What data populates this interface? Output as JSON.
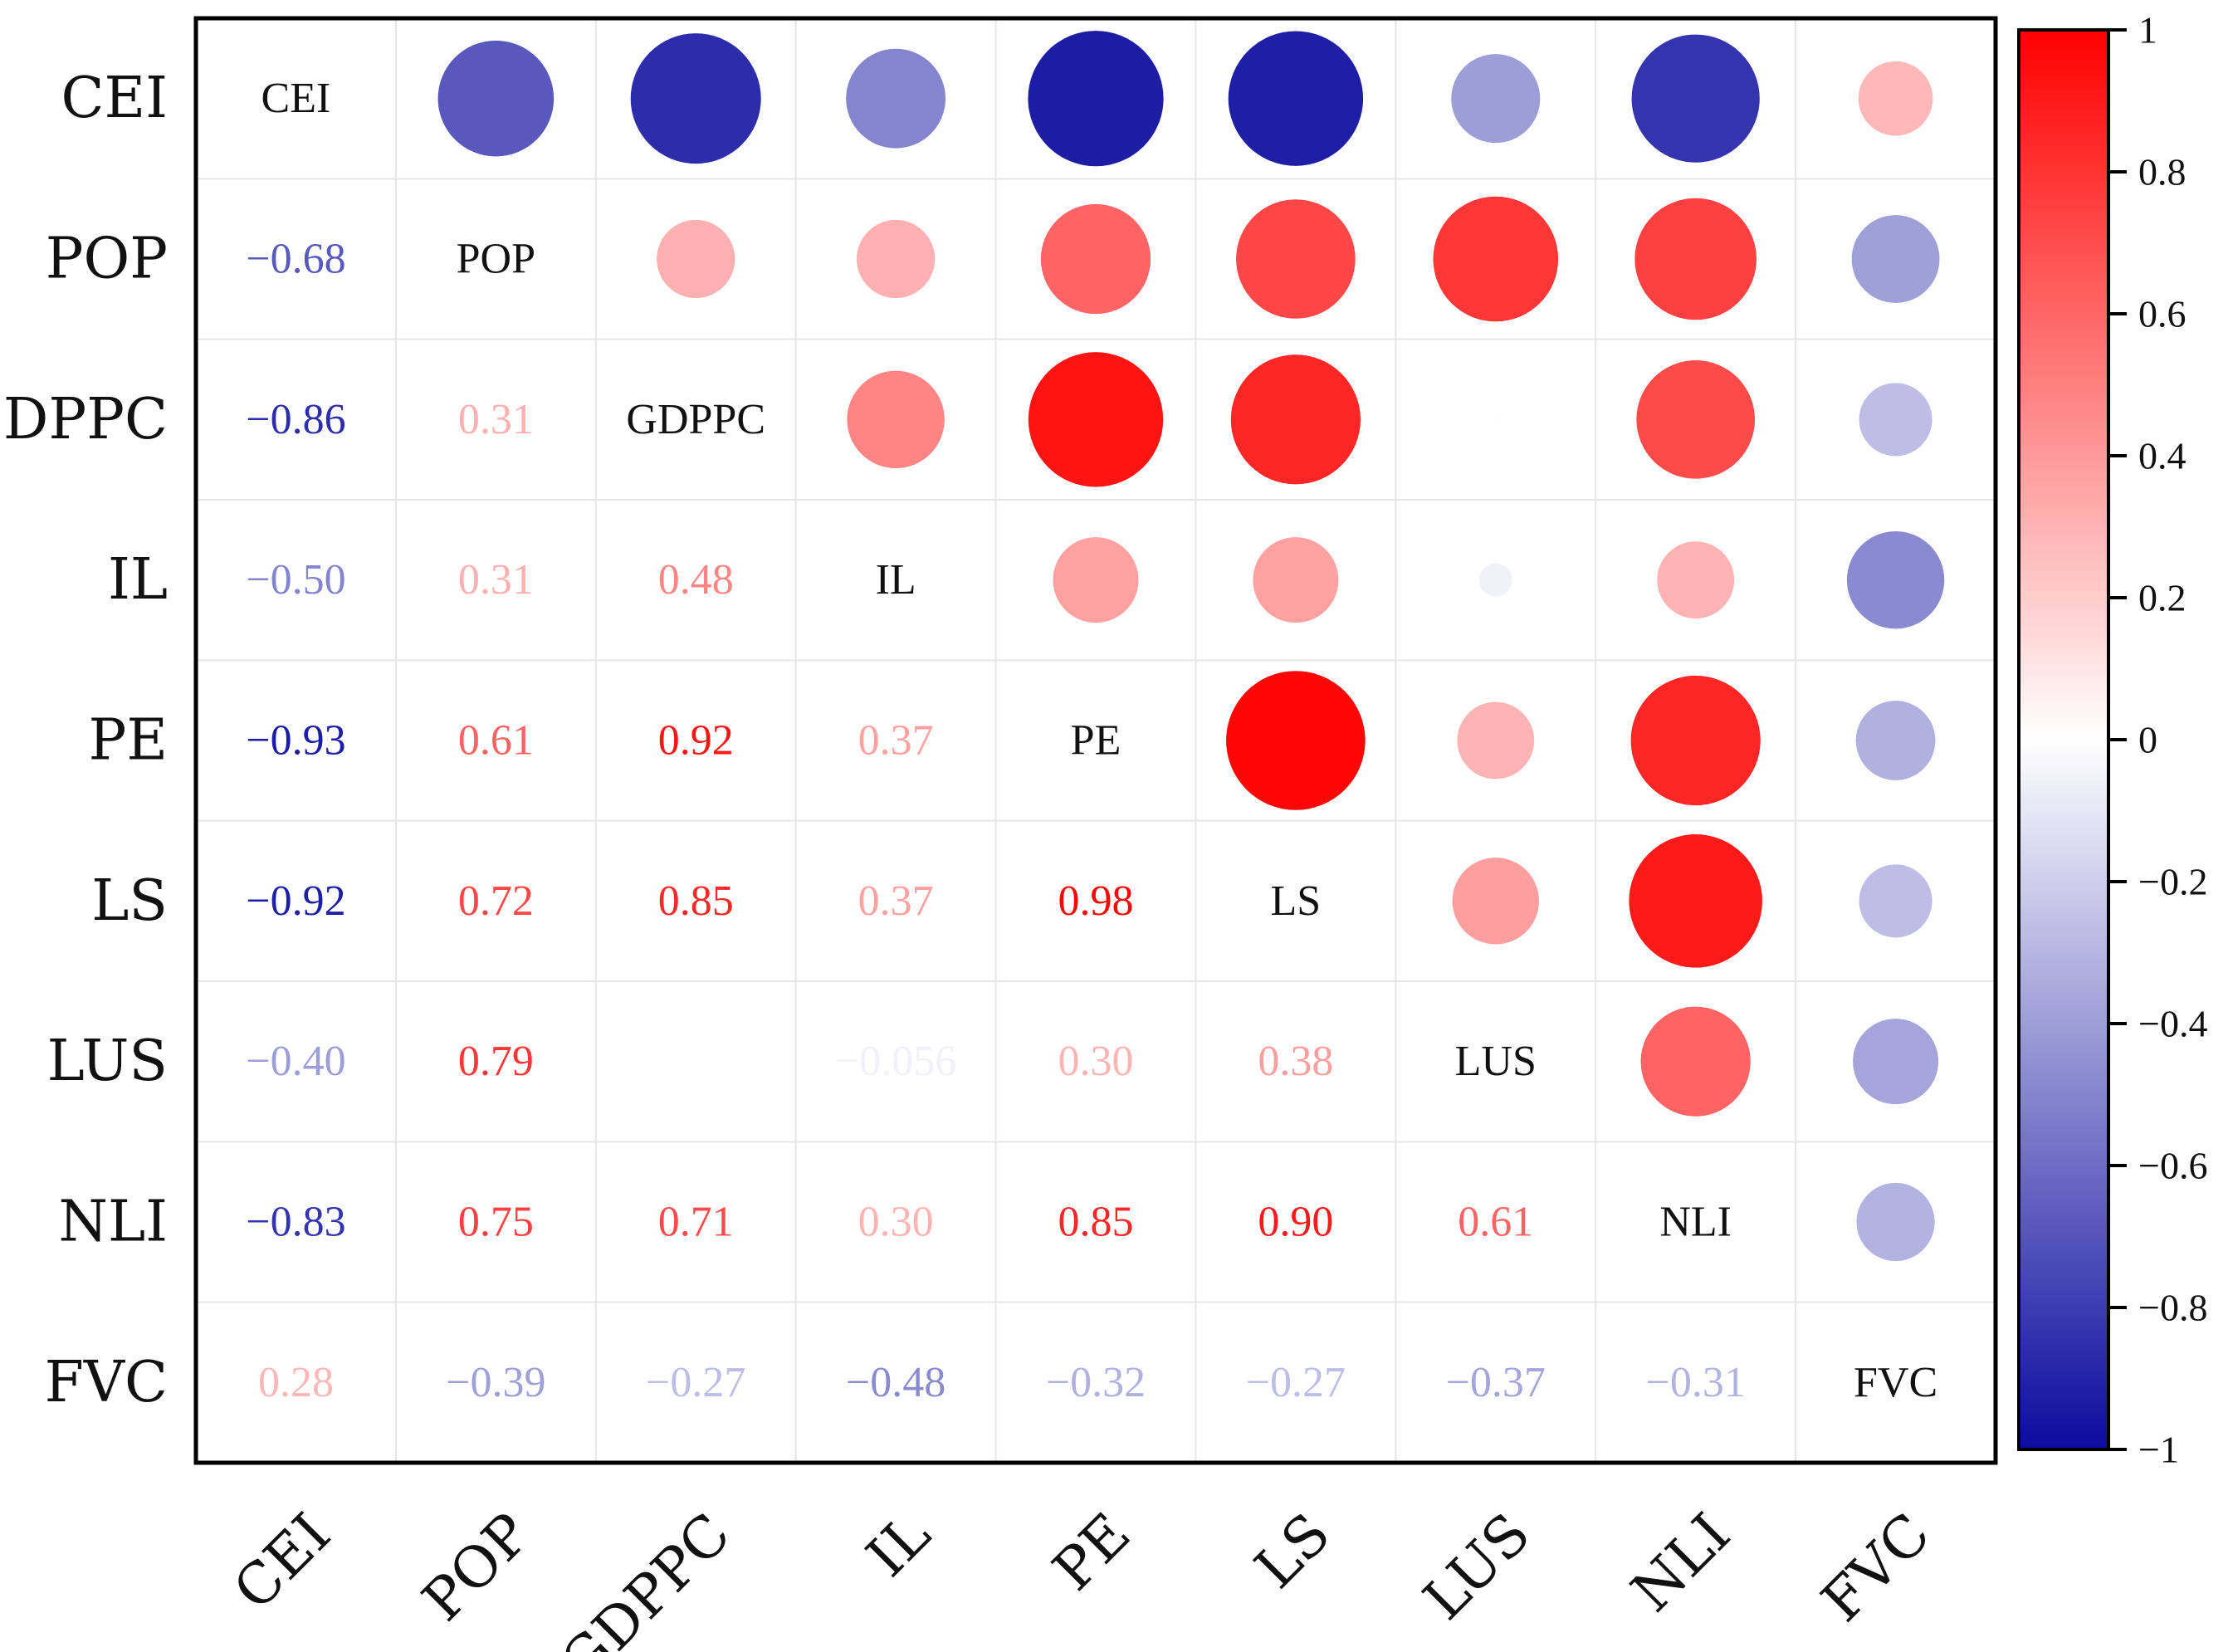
{
  "chart_data": {
    "type": "heatmap",
    "style": "correlation-matrix",
    "variables": [
      "CEI",
      "POP",
      "GDPPC",
      "IL",
      "PE",
      "LS",
      "LUS",
      "NLI",
      "FVC"
    ],
    "lower_labels": [
      [
        "",
        "",
        "",
        "",
        "",
        "",
        "",
        "",
        ""
      ],
      [
        "−0.68",
        "",
        "",
        "",
        "",
        "",
        "",
        "",
        ""
      ],
      [
        "−0.86",
        "0.31",
        "",
        "",
        "",
        "",
        "",
        "",
        ""
      ],
      [
        "−0.50",
        "0.31",
        "0.48",
        "",
        "",
        "",
        "",
        "",
        ""
      ],
      [
        "−0.93",
        "0.61",
        "0.92",
        "0.37",
        "",
        "",
        "",
        "",
        ""
      ],
      [
        "−0.92",
        "0.72",
        "0.85",
        "0.37",
        "0.98",
        "",
        "",
        "",
        ""
      ],
      [
        "−0.40",
        "0.79",
        "",
        "−0.056",
        "0.30",
        "0.38",
        "",
        "",
        ""
      ],
      [
        "−0.83",
        "0.75",
        "0.71",
        "0.30",
        "0.85",
        "0.90",
        "0.61",
        "",
        ""
      ],
      [
        "0.28",
        "−0.39",
        "−0.27",
        "−0.48",
        "−0.32",
        "−0.27",
        "−0.37",
        "−0.31",
        ""
      ]
    ],
    "matrix": [
      [
        1,
        -0.68,
        -0.86,
        -0.5,
        -0.93,
        -0.92,
        -0.4,
        -0.83,
        0.28
      ],
      [
        -0.68,
        1,
        0.31,
        0.31,
        0.61,
        0.72,
        0.79,
        0.75,
        -0.39
      ],
      [
        -0.86,
        0.31,
        1,
        0.48,
        0.92,
        0.85,
        0.005,
        0.71,
        -0.27
      ],
      [
        -0.5,
        0.31,
        0.48,
        1,
        0.37,
        0.37,
        -0.056,
        0.3,
        -0.48
      ],
      [
        -0.93,
        0.61,
        0.92,
        0.37,
        1,
        0.98,
        0.3,
        0.85,
        -0.32
      ],
      [
        -0.92,
        0.72,
        0.85,
        0.37,
        0.98,
        1,
        0.38,
        0.9,
        -0.27
      ],
      [
        -0.4,
        0.79,
        0.005,
        -0.056,
        0.3,
        0.38,
        1,
        0.61,
        -0.37
      ],
      [
        -0.83,
        0.75,
        0.71,
        0.3,
        0.85,
        0.9,
        0.61,
        1,
        -0.31
      ],
      [
        0.28,
        -0.39,
        -0.27,
        -0.48,
        -0.32,
        -0.27,
        -0.37,
        -0.31,
        1
      ]
    ],
    "upper": "circles",
    "lower": "numbers",
    "diagonal": "variable-names",
    "colorbar": {
      "range": [
        -1,
        1
      ],
      "ticks": [
        1,
        0.8,
        0.6,
        0.4,
        0.2,
        0,
        -0.2,
        -0.4,
        -0.6,
        -0.8,
        -1
      ],
      "tick_labels": [
        "1",
        "0.8",
        "0.6",
        "0.4",
        "0.2",
        "0",
        "−0.2",
        "−0.4",
        "−0.6",
        "−0.8",
        "−1"
      ],
      "colors": {
        "negative": "#0b0b9e",
        "zero": "#ffffff",
        "positive": "#ff0000"
      }
    },
    "colors": {
      "grid": "#e6e6e6",
      "frame": "#000000",
      "text": "#000000"
    }
  }
}
